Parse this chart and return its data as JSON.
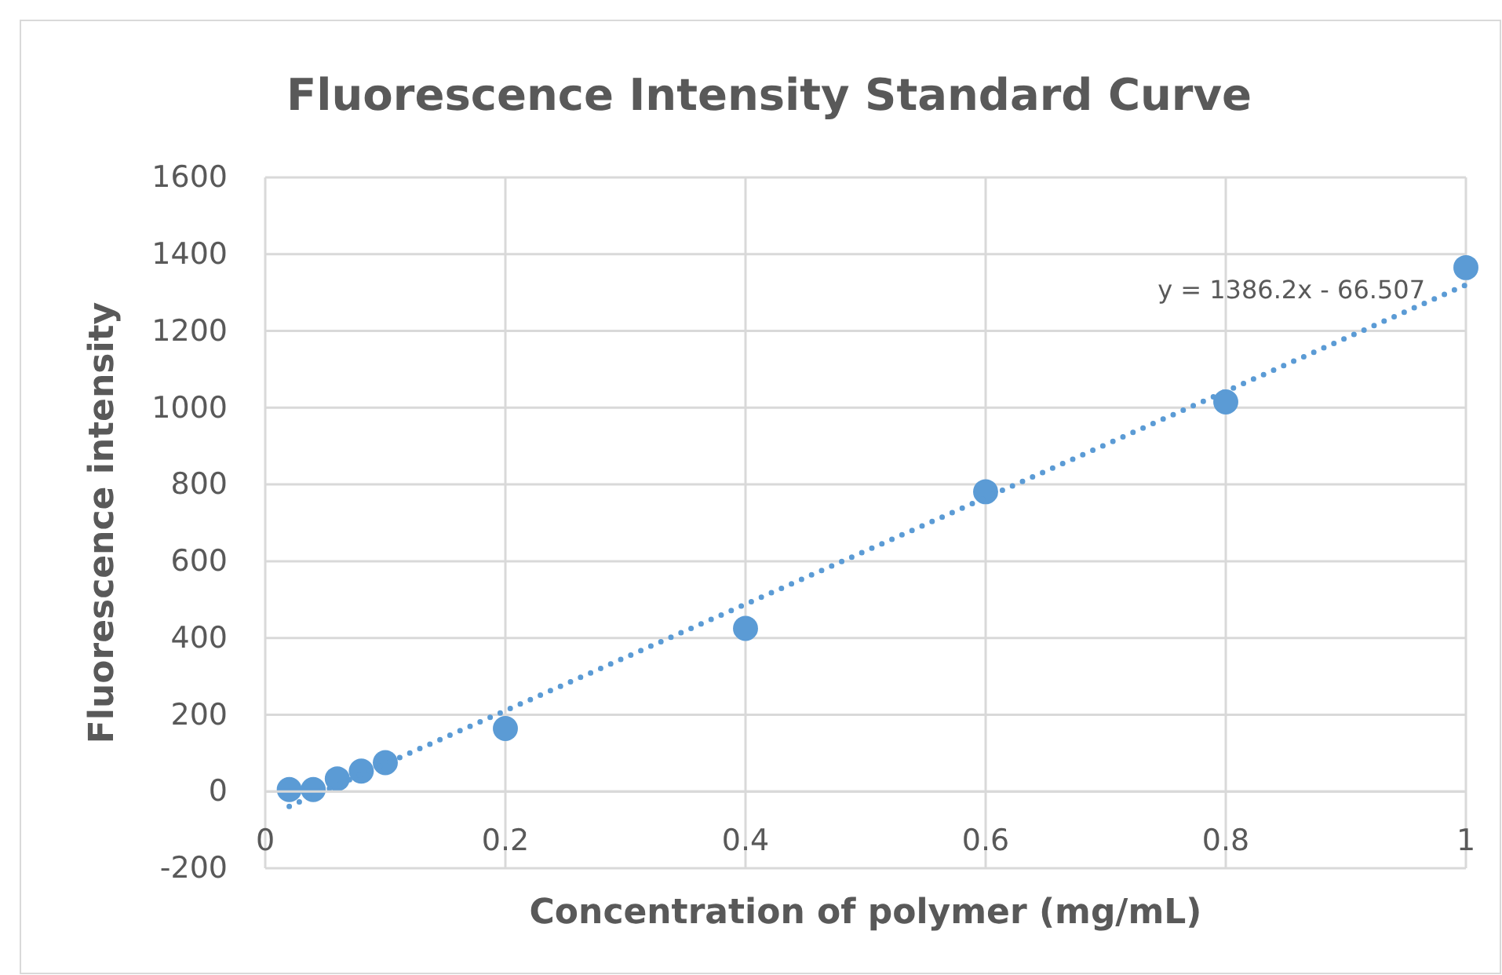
{
  "chart_data": {
    "type": "scatter",
    "title": "Fluorescence Intensity Standard Curve",
    "xlabel": "Concentration of polymer (mg/mL)",
    "ylabel": "Fluorescence intensity",
    "xlim": [
      0,
      1
    ],
    "xticks": [
      0,
      0.2,
      0.4,
      0.6,
      0.8,
      1
    ],
    "ylim": [
      -200,
      1600
    ],
    "yticks": [
      -200,
      0,
      200,
      400,
      600,
      800,
      1000,
      1200,
      1400,
      1600
    ],
    "grid": true,
    "series": [
      {
        "marker": "circle",
        "color": "#5b9bd5",
        "x": [
          0.02,
          0.04,
          0.06,
          0.08,
          0.1,
          0.2,
          0.4,
          0.6,
          0.8,
          1
        ],
        "values": [
          5,
          5,
          33,
          53,
          75,
          164,
          425,
          781,
          1015,
          1365
        ]
      },
      {
        "type": "line",
        "color": "#5b9bd5",
        "line_style": "dotted",
        "x": [
          0.02,
          1
        ],
        "values": [
          -39,
          1320
        ]
      }
    ],
    "annotations": [
      "y = 1386.2x - 66.507"
    ]
  }
}
